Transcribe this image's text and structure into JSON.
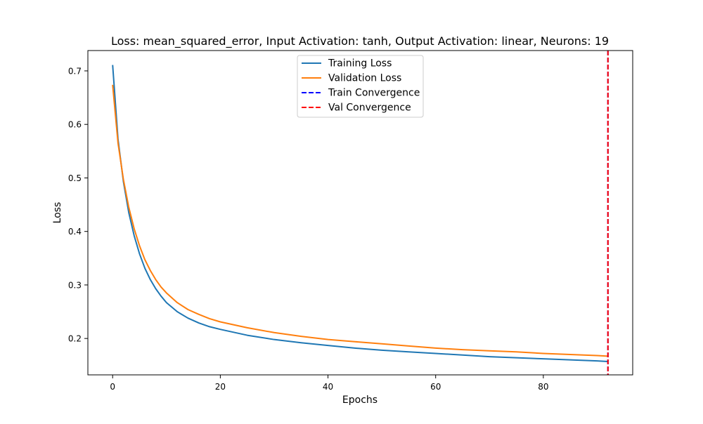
{
  "chart_data": {
    "type": "line",
    "title": "Loss: mean_squared_error, Input Activation: tanh, Output Activation: linear, Neurons: 19",
    "xlabel": "Epochs",
    "ylabel": "Loss",
    "xlim": [
      -4.6,
      96.6
    ],
    "ylim": [
      0.132,
      0.738
    ],
    "xticks": [
      0,
      20,
      40,
      60,
      80
    ],
    "xtick_labels": [
      "0",
      "20",
      "40",
      "60",
      "80"
    ],
    "yticks": [
      0.2,
      0.3,
      0.4,
      0.5,
      0.6,
      0.7
    ],
    "ytick_labels": [
      "0.2",
      "0.3",
      "0.4",
      "0.5",
      "0.6",
      "0.7"
    ],
    "grid": false,
    "legend_position": "upper center",
    "series": [
      {
        "name": "Training Loss",
        "color": "#1f77b4",
        "style": "solid",
        "x": [
          0,
          1,
          2,
          3,
          4,
          5,
          6,
          7,
          8,
          9,
          10,
          12,
          14,
          16,
          18,
          20,
          25,
          30,
          35,
          40,
          45,
          50,
          55,
          60,
          65,
          70,
          75,
          80,
          85,
          90,
          92
        ],
        "y": [
          0.711,
          0.572,
          0.493,
          0.435,
          0.392,
          0.358,
          0.331,
          0.31,
          0.293,
          0.279,
          0.267,
          0.25,
          0.238,
          0.229,
          0.222,
          0.217,
          0.206,
          0.198,
          0.192,
          0.187,
          0.182,
          0.178,
          0.175,
          0.172,
          0.169,
          0.166,
          0.164,
          0.162,
          0.16,
          0.158,
          0.157
        ]
      },
      {
        "name": "Validation Loss",
        "color": "#ff7f0e",
        "style": "solid",
        "x": [
          0,
          1,
          2,
          3,
          4,
          5,
          6,
          7,
          8,
          9,
          10,
          12,
          14,
          16,
          18,
          20,
          25,
          30,
          35,
          40,
          45,
          50,
          55,
          60,
          65,
          70,
          75,
          80,
          85,
          90,
          92
        ],
        "y": [
          0.674,
          0.565,
          0.497,
          0.445,
          0.405,
          0.373,
          0.347,
          0.327,
          0.31,
          0.296,
          0.285,
          0.267,
          0.254,
          0.245,
          0.237,
          0.231,
          0.22,
          0.211,
          0.204,
          0.198,
          0.194,
          0.19,
          0.186,
          0.182,
          0.179,
          0.177,
          0.175,
          0.172,
          0.17,
          0.168,
          0.167
        ]
      },
      {
        "name": "Train Convergence",
        "color": "#0000ff",
        "style": "dashed",
        "vline_x": 92
      },
      {
        "name": "Val Convergence",
        "color": "#ff0000",
        "style": "dashed",
        "vline_x": 92
      }
    ]
  }
}
